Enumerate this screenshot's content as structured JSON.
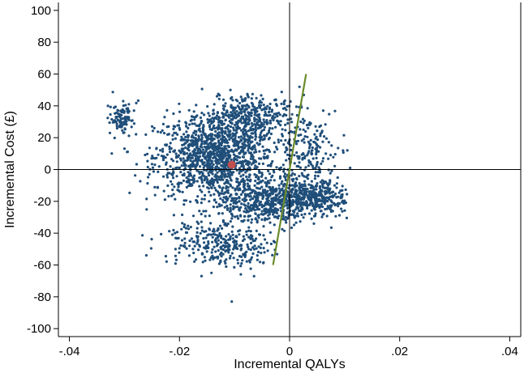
{
  "chart_data": {
    "type": "scatter",
    "title": "",
    "xlabel": "Incremental QALYs",
    "ylabel": "Incremental Cost (£)",
    "xlim": [
      -0.042,
      0.042
    ],
    "ylim": [
      -105,
      105
    ],
    "x_ticks": [
      -0.04,
      -0.02,
      0,
      0.02,
      0.04
    ],
    "x_tick_labels": [
      "-.04",
      "-.02",
      "0",
      ".02",
      ".04"
    ],
    "y_ticks": [
      -100,
      -80,
      -60,
      -40,
      -20,
      0,
      20,
      40,
      60,
      80,
      100
    ],
    "y_tick_labels": [
      "-100",
      "-80",
      "-60",
      "-40",
      "-20",
      "0",
      "20",
      "40",
      "60",
      "80",
      "100"
    ],
    "grid": false,
    "reference_lines": {
      "x": 0,
      "y": 0
    },
    "mean_point": {
      "x": -0.0105,
      "y": 3
    },
    "threshold_line": {
      "x": [
        -0.003,
        0.003
      ],
      "y": [
        -60,
        60
      ]
    },
    "scatter_clusters": [
      {
        "cx": -0.0135,
        "cy": 8,
        "sx": 0.0055,
        "sy": 13,
        "n": 1200
      },
      {
        "cx": -0.0075,
        "cy": 33,
        "sx": 0.004,
        "sy": 7,
        "n": 350
      },
      {
        "cx": -0.0305,
        "cy": 33,
        "sx": 0.0012,
        "sy": 5,
        "n": 90
      },
      {
        "cx": -0.004,
        "cy": -20,
        "sx": 0.0045,
        "sy": 7,
        "n": 550
      },
      {
        "cx": 0.0045,
        "cy": -18,
        "sx": 0.0028,
        "sy": 6,
        "n": 320
      },
      {
        "cx": 0.0035,
        "cy": 12,
        "sx": 0.003,
        "sy": 11,
        "n": 180
      },
      {
        "cx": -0.0145,
        "cy": -45,
        "sx": 0.0045,
        "sy": 7,
        "n": 230
      },
      {
        "cx": -0.008,
        "cy": -52,
        "sx": 0.0025,
        "sy": 6,
        "n": 70
      }
    ],
    "outliers": [
      {
        "x": -0.0105,
        "y": -83
      },
      {
        "x": -0.016,
        "y": -67
      },
      {
        "x": -0.033,
        "y": 40
      },
      {
        "x": 0.011,
        "y": 1
      },
      {
        "x": 0.0105,
        "y": 12
      }
    ],
    "colors": {
      "points": "#1f4e79",
      "mean_point": "#c0504d",
      "threshold_line": "#6a8a2a",
      "axes": "#000000"
    }
  }
}
